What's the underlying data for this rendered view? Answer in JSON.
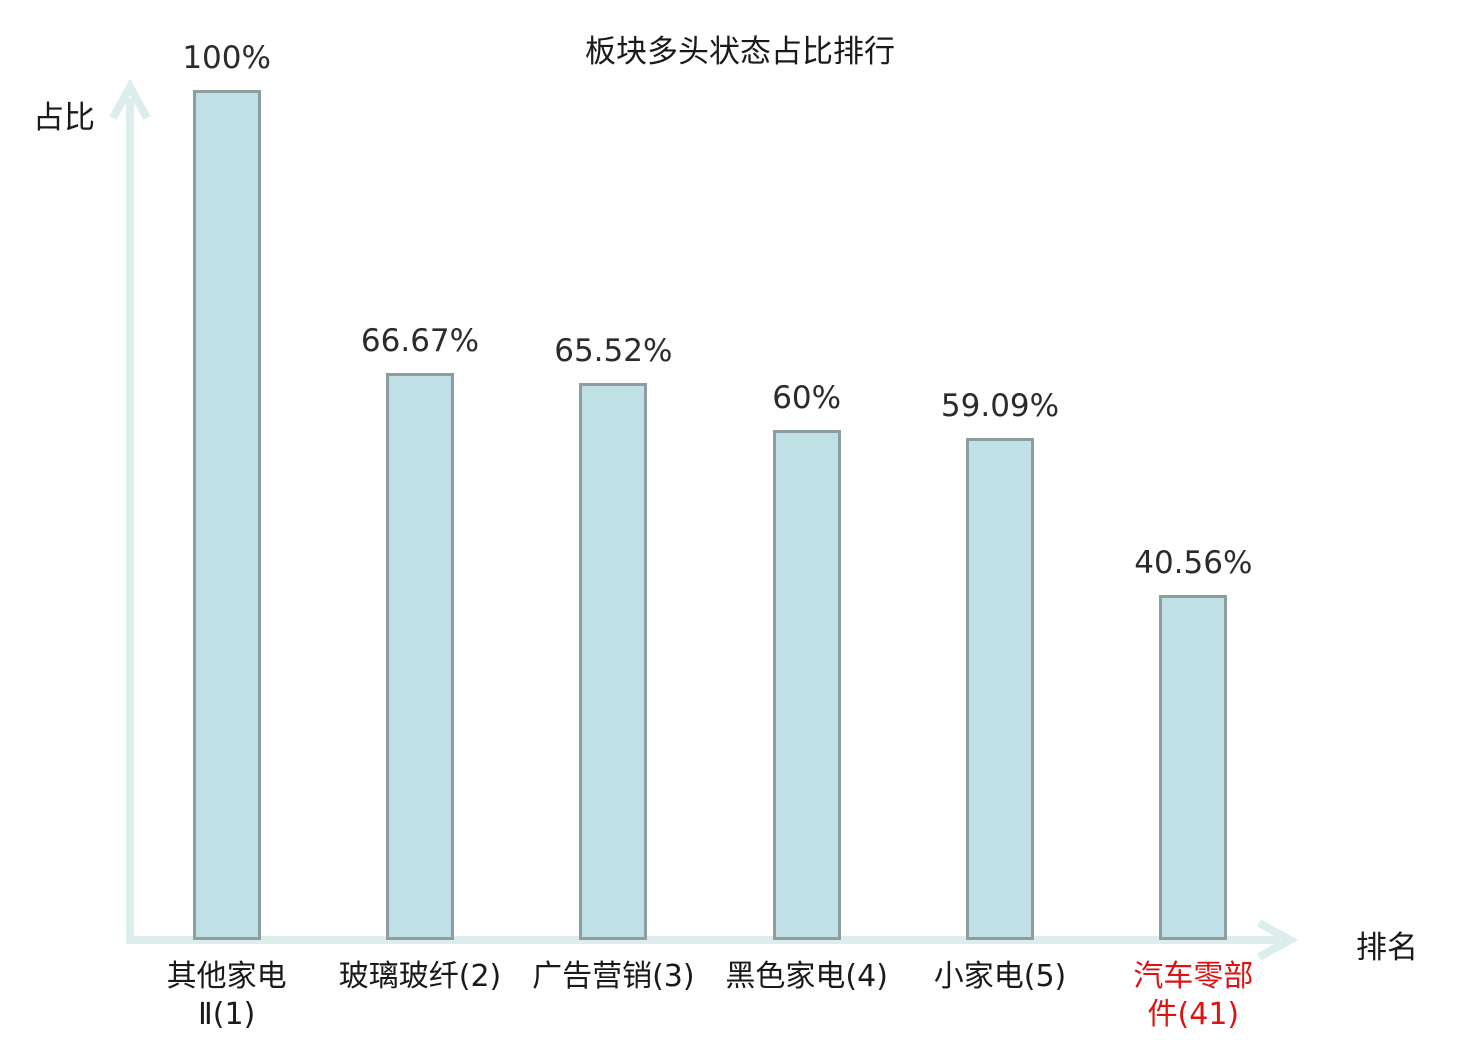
{
  "chart_data": {
    "type": "bar",
    "title": "板块多头状态占比排行",
    "xlabel": "排名",
    "ylabel": "占比",
    "categories": [
      "其他家电Ⅱ(1)",
      "玻璃玻纤(2)",
      "广告营销(3)",
      "黑色家电(4)",
      "小家电(5)",
      "汽车零部件(41)"
    ],
    "category_lines": [
      [
        "其他家电",
        "Ⅱ(1)"
      ],
      [
        "玻璃玻纤(2)"
      ],
      [
        "广告营销(3)"
      ],
      [
        "黑色家电(4)"
      ],
      [
        "小家电(5)"
      ],
      [
        "汽车零部",
        "件(41)"
      ]
    ],
    "values": [
      100,
      66.67,
      65.52,
      60,
      59.09,
      40.56
    ],
    "value_labels": [
      "100%",
      "66.67%",
      "65.52%",
      "60%",
      "59.09%",
      "40.56%"
    ],
    "ylim": [
      0,
      100
    ],
    "grid": false,
    "legend": "none",
    "highlight_index": 5,
    "colors": {
      "bar_fill": "#bfe0e4",
      "bar_border": "#8d9da1",
      "axis": "#dcedeb",
      "text": "#1a1a1a",
      "highlight_text": "#e01111",
      "background": "#ffffff"
    }
  }
}
